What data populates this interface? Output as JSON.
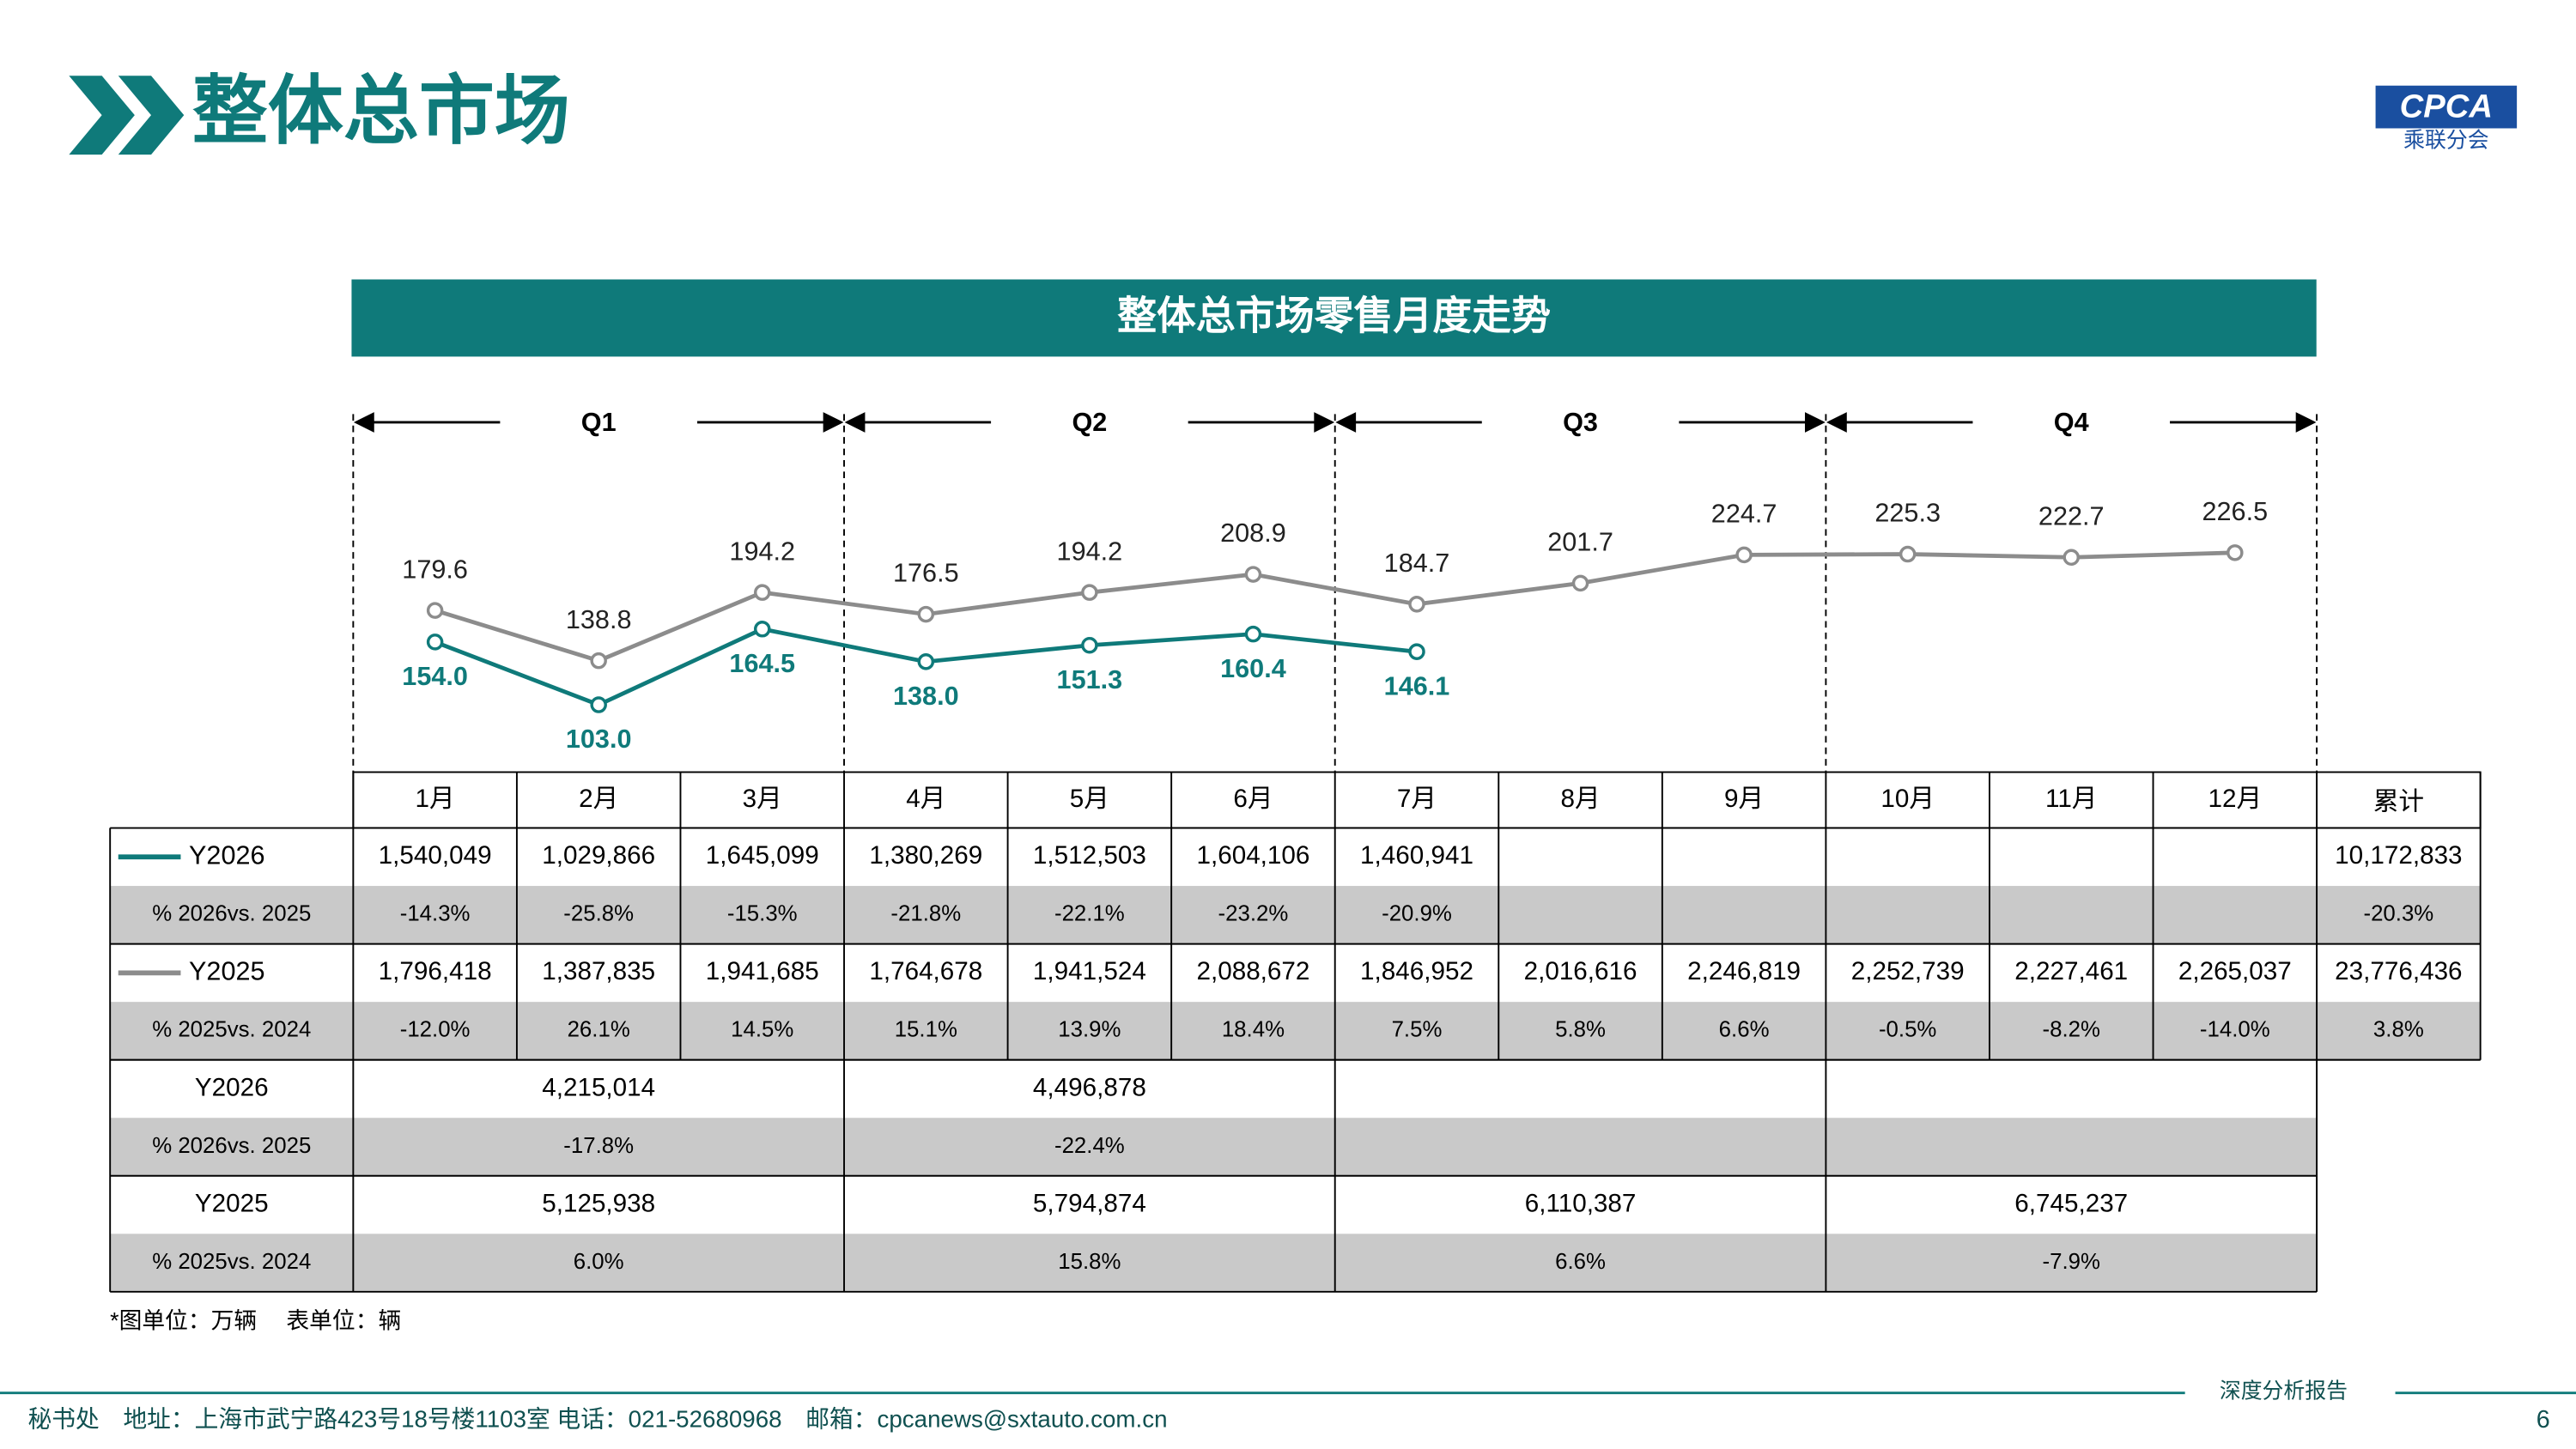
{
  "header": {
    "title": "整体总市场",
    "logo": "CPCA",
    "logo_sub": "乘联分会"
  },
  "chart_data": {
    "type": "line",
    "title": "整体总市场零售月度走势",
    "categories": [
      "1月",
      "2月",
      "3月",
      "4月",
      "5月",
      "6月",
      "7月",
      "8月",
      "9月",
      "10月",
      "11月",
      "12月"
    ],
    "quarters": [
      "Q1",
      "Q2",
      "Q3",
      "Q4"
    ],
    "ylim": [
      55,
      315
    ],
    "series": [
      {
        "name": "Y2026",
        "color": "#0f7a7a",
        "values": [
          154.0,
          103.0,
          164.5,
          138.0,
          151.3,
          160.4,
          146.1,
          null,
          null,
          null,
          null,
          null
        ],
        "value_labels": [
          "154.0",
          "103.0",
          "164.5",
          "138.0",
          "151.3",
          "160.4",
          "146.1",
          null,
          null,
          null,
          null,
          null
        ]
      },
      {
        "name": "Y2025",
        "color": "#8c8c8c",
        "values": [
          179.6,
          138.8,
          194.2,
          176.5,
          194.2,
          208.9,
          184.7,
          201.7,
          224.7,
          225.3,
          222.7,
          226.5
        ],
        "value_labels": [
          "179.6",
          "138.8",
          "194.2",
          "176.5",
          "194.2",
          "208.9",
          "184.7",
          "201.7",
          "224.7",
          "225.3",
          "222.7",
          "226.5"
        ]
      }
    ]
  },
  "table": {
    "total_header": "累计",
    "monthly_rows": [
      {
        "series": 0,
        "cells": [
          "1,540,049",
          "1,029,866",
          "1,645,099",
          "1,380,269",
          "1,512,503",
          "1,604,106",
          "1,460,941",
          null,
          null,
          null,
          null,
          null
        ],
        "total": "10,172,833"
      },
      {
        "label": "% 2026vs. 2025",
        "cells": [
          "-14.3%",
          "-25.8%",
          "-15.3%",
          "-21.8%",
          "-22.1%",
          "-23.2%",
          "-20.9%",
          null,
          null,
          null,
          null,
          null
        ],
        "total": "-20.3%"
      },
      {
        "series": 1,
        "cells": [
          "1,796,418",
          "1,387,835",
          "1,941,685",
          "1,764,678",
          "1,941,524",
          "2,088,672",
          "1,846,952",
          "2,016,616",
          "2,246,819",
          "2,252,739",
          "2,227,461",
          "2,265,037"
        ],
        "total": "23,776,436"
      },
      {
        "label": "% 2025vs. 2024",
        "cells": [
          "-12.0%",
          "26.1%",
          "14.5%",
          "15.1%",
          "13.9%",
          "18.4%",
          "7.5%",
          "5.8%",
          "6.6%",
          "-0.5%",
          "-8.2%",
          "-14.0%"
        ],
        "total": "3.8%"
      }
    ],
    "quarterly_rows": [
      {
        "label": "Y2026",
        "cells": [
          "4,215,014",
          "4,496,878",
          null,
          null
        ]
      },
      {
        "label": "% 2026vs. 2025",
        "cells": [
          "-17.8%",
          "-22.4%",
          null,
          null
        ]
      },
      {
        "label": "Y2025",
        "cells": [
          "5,125,938",
          "5,794,874",
          "6,110,387",
          "6,745,237"
        ]
      },
      {
        "label": "% 2025vs. 2024",
        "cells": [
          "6.0%",
          "15.8%",
          "6.6%",
          "-7.9%"
        ]
      }
    ]
  },
  "footnote": "*图单位：万辆　 表单位：辆",
  "footer": {
    "contact": "秘书处　地址：上海市武宁路423号18号楼1103室  电话：021-52680968　邮箱：cpcanews@sxtauto.com.cn",
    "report": "深度分析报告",
    "page": "6"
  }
}
